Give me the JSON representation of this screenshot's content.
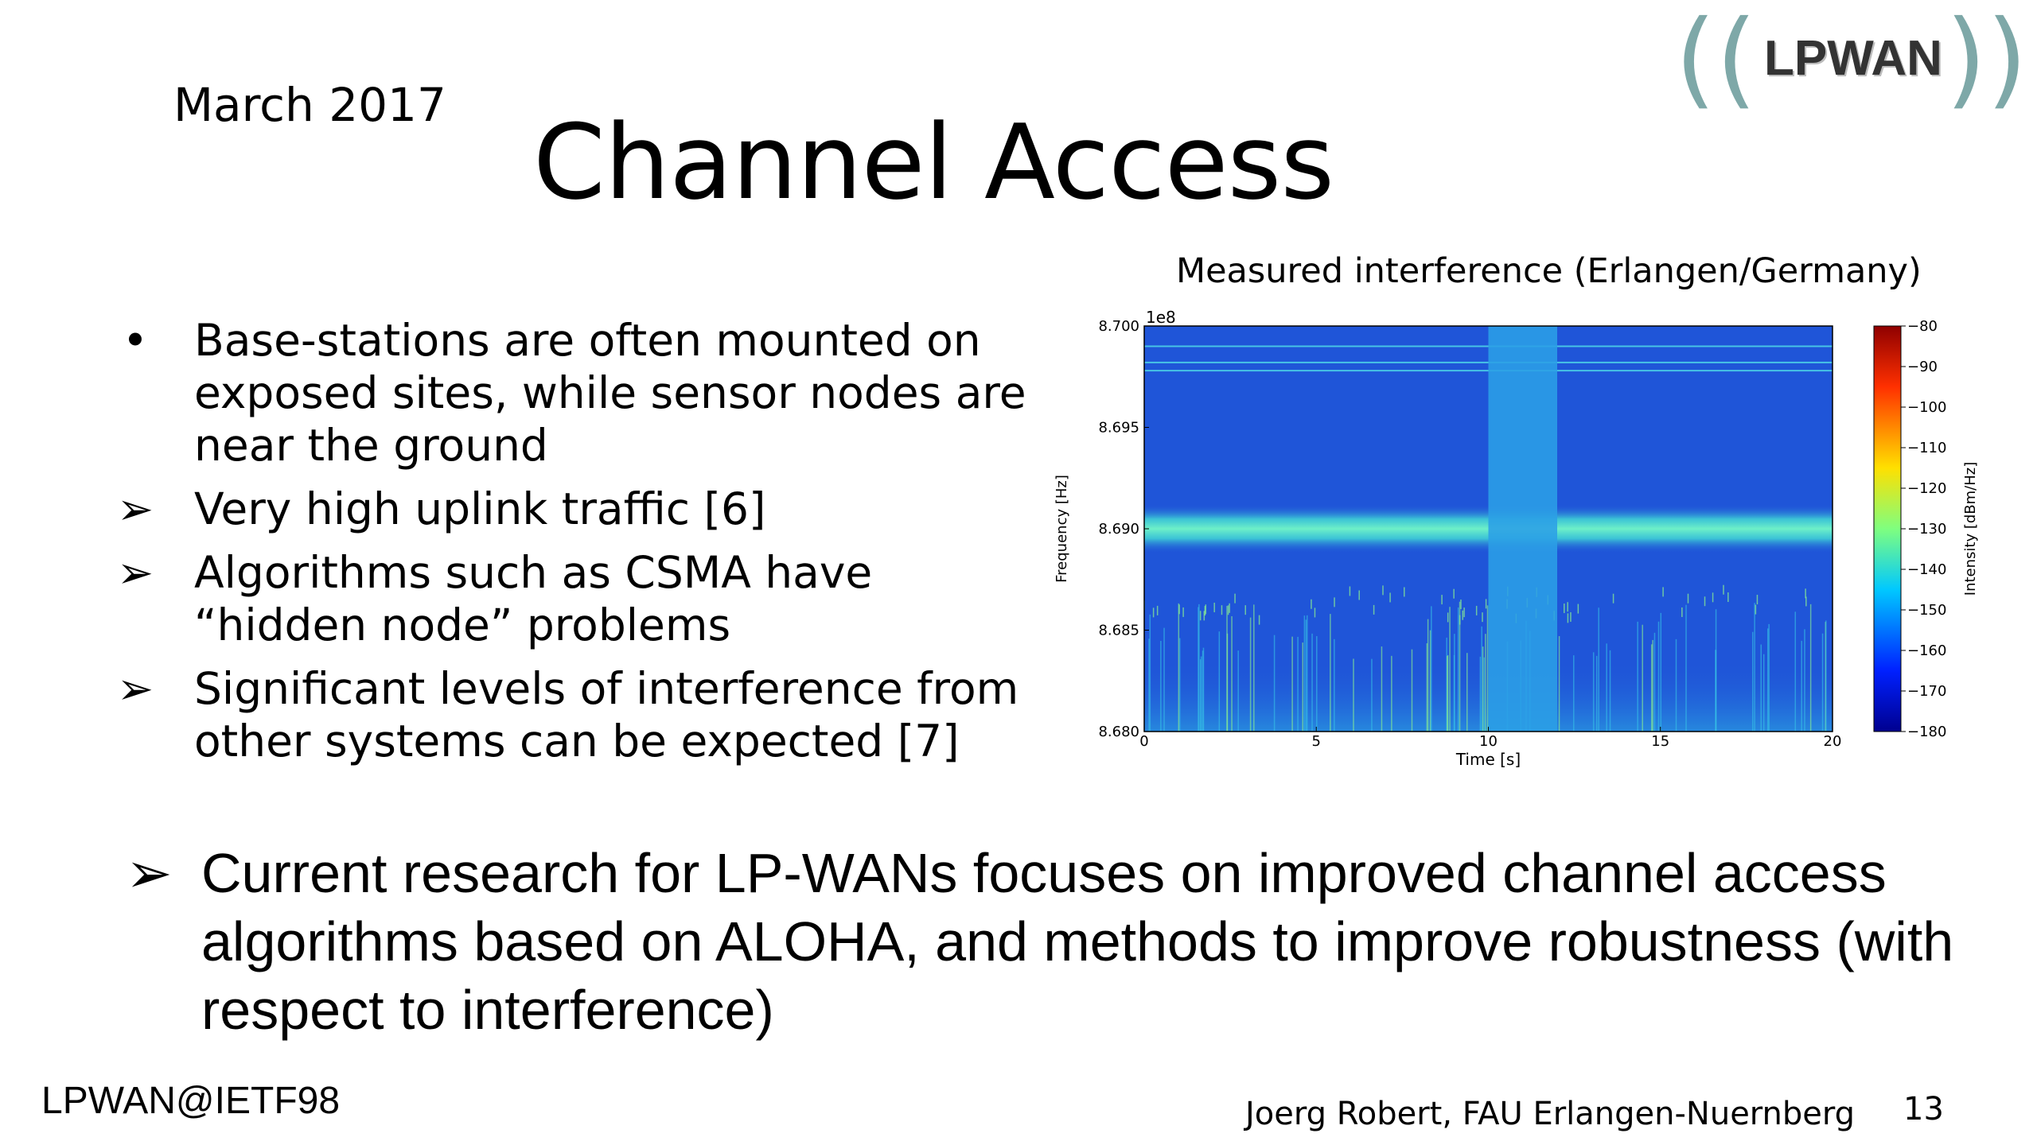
{
  "header": {
    "date": "March 2017",
    "title": "Channel Access",
    "logo_text": "LPWAN"
  },
  "bullets": [
    {
      "marker": "•",
      "text": "Base-stations are often mounted on exposed sites, while sensor nodes are near the ground"
    },
    {
      "marker": "➢",
      "text": "Very high uplink traffic [6]"
    },
    {
      "marker": "➢",
      "text": "Algorithms such as CSMA have    “hidden node” problems"
    },
    {
      "marker": "➢",
      "text": "Significant levels of interference from other systems can be expected [7]"
    }
  ],
  "bottom_point": {
    "marker": "➢",
    "text": "Current research for LP-WANs focuses on improved channel access algorithms based on ALOHA, and methods to improve robustness (with respect to interference)"
  },
  "footer": {
    "left": "LPWAN@IETF98",
    "author": "Joerg Robert, FAU Erlangen-Nuernberg",
    "page": "13"
  },
  "colors": {
    "logo_wave": "#7ea8a8",
    "heatmap_background": "#1f55d8",
    "interference_band": "#3fd0d6"
  },
  "chart_data": {
    "type": "heatmap",
    "title": "Measured interference (Erlangen/Germany)",
    "xlabel": "Time [s]",
    "ylabel": "Frequency [Hz]",
    "y_offset_label": "1e8",
    "xlim": [
      0,
      20
    ],
    "ylim": [
      8.68,
      8.7
    ],
    "x_ticks": [
      "0",
      "5",
      "10",
      "15",
      "20"
    ],
    "y_ticks": [
      "8.680",
      "8.685",
      "8.690",
      "8.695",
      "8.700"
    ],
    "colorbar": {
      "label": "Intensity [dBm/Hz]",
      "range": [
        -180,
        -80
      ],
      "ticks": [
        "−80",
        "−90",
        "−100",
        "−110",
        "−120",
        "−130",
        "−140",
        "−150",
        "−160",
        "−170",
        "−180"
      ]
    },
    "features": {
      "wideband_burst_time_s": [
        10.0,
        12.0
      ],
      "narrowband_lines_freq": [
        8.699,
        8.6982,
        8.6978
      ],
      "strong_band_freq": [
        8.6895,
        8.6905
      ],
      "noisy_floor_freq": [
        8.68,
        8.6835
      ]
    }
  }
}
